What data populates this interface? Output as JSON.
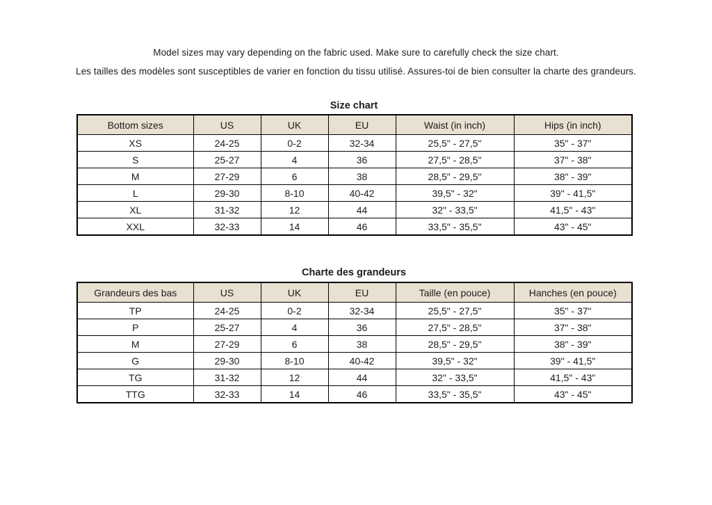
{
  "notes": {
    "english": "Model sizes may vary depending on the fabric used. Make sure to carefully check the size chart.",
    "french": "Les tailles des modèles sont susceptibles de varier en fonction du tissu utilisé. Assures-toi de bien consulter la charte des grandeurs."
  },
  "tables": [
    {
      "title": "Size chart",
      "columns": [
        "Bottom sizes",
        "US",
        "UK",
        "EU",
        "Waist (in inch)",
        "Hips (in inch)"
      ],
      "rows": [
        [
          "XS",
          "24-25",
          "0-2",
          "32-34",
          "25,5\" - 27,5\"",
          "35\" - 37\""
        ],
        [
          "S",
          "25-27",
          "4",
          "36",
          "27,5\" - 28,5\"",
          "37\" - 38\""
        ],
        [
          "M",
          "27-29",
          "6",
          "38",
          "28,5\" - 29,5\"",
          "38\" - 39\""
        ],
        [
          "L",
          "29-30",
          "8-10",
          "40-42",
          "39,5\" - 32\"",
          "39\" - 41,5\""
        ],
        [
          "XL",
          "31-32",
          "12",
          "44",
          "32\" - 33,5\"",
          "41,5\" - 43\""
        ],
        [
          "XXL",
          "32-33",
          "14",
          "46",
          "33,5\" - 35,5\"",
          "43\" - 45\""
        ]
      ]
    },
    {
      "title": "Charte des grandeurs",
      "columns": [
        "Grandeurs des bas",
        "US",
        "UK",
        "EU",
        "Taille (en pouce)",
        "Hanches (en pouce)"
      ],
      "rows": [
        [
          "TP",
          "24-25",
          "0-2",
          "32-34",
          "25,5\" - 27,5\"",
          "35\" - 37\""
        ],
        [
          "P",
          "25-27",
          "4",
          "36",
          "27,5\" - 28,5\"",
          "37\" - 38\""
        ],
        [
          "M",
          "27-29",
          "6",
          "38",
          "28,5\" - 29,5\"",
          "38\" - 39\""
        ],
        [
          "G",
          "29-30",
          "8-10",
          "40-42",
          "39,5\" - 32\"",
          "39\" - 41,5\""
        ],
        [
          "TG",
          "31-32",
          "12",
          "44",
          "32\" - 33,5\"",
          "41,5\" - 43\""
        ],
        [
          "TTG",
          "32-33",
          "14",
          "46",
          "33,5\" - 35,5\"",
          "43\" - 45\""
        ]
      ]
    }
  ],
  "colors": {
    "header_background": "#e8e0d0",
    "border": "#000000",
    "text": "#1c1c1c",
    "page_background": "#ffffff"
  }
}
